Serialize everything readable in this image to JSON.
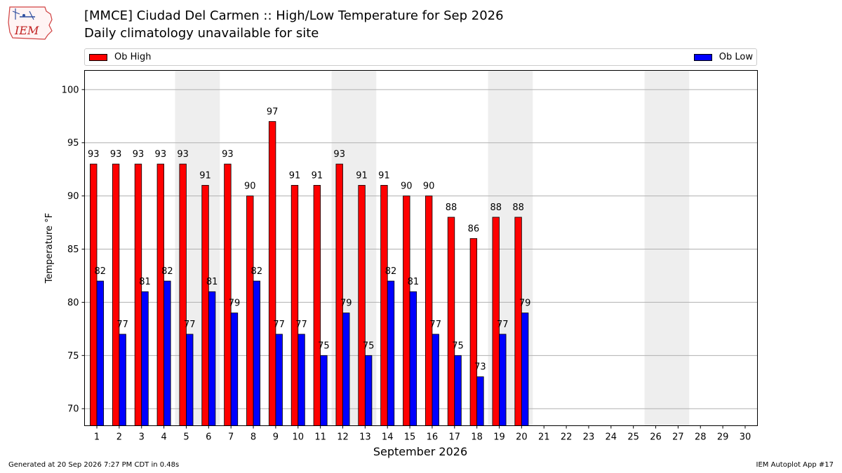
{
  "header": {
    "logo_text": "IEM",
    "title": "[MMCE] Ciudad Del Carmen :: High/Low Temperature for Sep 2026",
    "subtitle": "Daily climatology unavailable for site"
  },
  "footer": {
    "generated": "Generated at 20 Sep 2026 7:27 PM CDT in 0.48s",
    "app": "IEM Autoplot App #17"
  },
  "colors": {
    "high": "#ff0000",
    "low": "#0000ff",
    "weekend_shade": "#eeeeee",
    "grid": "#b0b0b0"
  },
  "chart_data": {
    "type": "bar",
    "xlabel": "September 2026",
    "ylabel": "Temperature °F",
    "ylim": [
      68.4,
      101.8
    ],
    "yticks": [
      70,
      75,
      80,
      85,
      90,
      95,
      100
    ],
    "x_days": [
      1,
      2,
      3,
      4,
      5,
      6,
      7,
      8,
      9,
      10,
      11,
      12,
      13,
      14,
      15,
      16,
      17,
      18,
      19,
      20,
      21,
      22,
      23,
      24,
      25,
      26,
      27,
      28,
      29,
      30
    ],
    "weekend_days": [
      [
        5,
        6
      ],
      [
        12,
        13
      ],
      [
        19,
        20
      ],
      [
        26,
        27
      ]
    ],
    "grid": "horizontal",
    "legend_position": "top",
    "series": [
      {
        "name": "Ob High",
        "values": [
          93,
          93,
          93,
          93,
          93,
          91,
          93,
          90,
          97,
          91,
          91,
          93,
          91,
          91,
          90,
          90,
          88,
          86,
          88,
          88
        ]
      },
      {
        "name": "Ob Low",
        "values": [
          82,
          77,
          81,
          82,
          77,
          81,
          79,
          82,
          77,
          77,
          75,
          79,
          75,
          82,
          81,
          77,
          75,
          73,
          77,
          79
        ]
      }
    ]
  }
}
